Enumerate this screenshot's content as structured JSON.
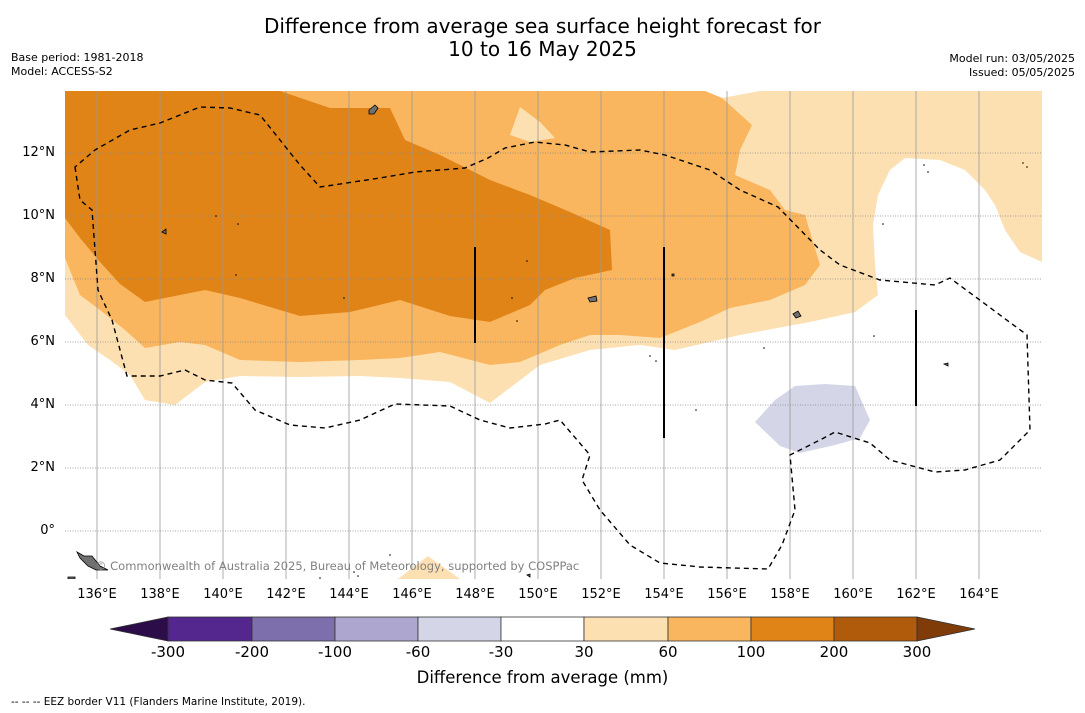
{
  "title": {
    "line1": "Difference from average sea surface height forecast for",
    "line2": "10 to 16 May 2025"
  },
  "meta": {
    "base_period": "Base period: 1981-2018",
    "model": "Model: ACCESS-S2",
    "model_run": "Model run: 03/05/2025",
    "issued": "Issued: 05/05/2025"
  },
  "map": {
    "lon_labels": [
      "136°E",
      "138°E",
      "140°E",
      "142°E",
      "144°E",
      "146°E",
      "148°E",
      "150°E",
      "152°E",
      "154°E",
      "156°E",
      "158°E",
      "160°E",
      "162°E",
      "164°E"
    ],
    "lat_labels": [
      "12°N",
      "10°N",
      "8°N",
      "6°N",
      "4°N",
      "2°N",
      "0°"
    ],
    "copyright": "© Commonwealth of Australia 2025, Bureau of Meteorology, supported by COSPPac",
    "land_color": "#707070"
  },
  "colorbar": {
    "title": "Difference from average (mm)",
    "tick_labels": [
      "-300",
      "-200",
      "-100",
      "-60",
      "-30",
      "30",
      "60",
      "100",
      "200",
      "300"
    ],
    "colors": {
      "below_min": "#2d0c4a",
      "n300_200": "#54278f",
      "n200_100": "#7d6fab",
      "n100_60": "#ada7cf",
      "n60_30": "#d5d5e8",
      "n30_30": "#ffffff",
      "p30_60": "#fde0b2",
      "p60_100": "#f9b65e",
      "p100_200": "#e18418",
      "p200_300": "#b05a0b",
      "above_max": "#7f3b08"
    }
  },
  "footnote": "--  --  -- EEZ border V11 (Flanders Marine Institute, 2019)."
}
